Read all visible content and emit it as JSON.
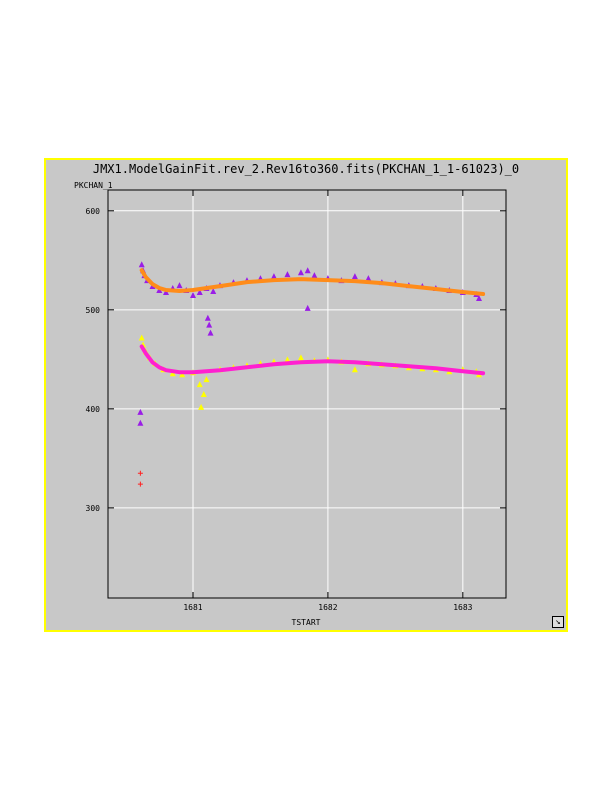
{
  "title": "JMX1.ModelGainFit.rev_2.Rev16to360.fits(PKCHAN_1_1-61023)_0",
  "ylabel": "PKCHAN_1",
  "xlabel": "TSTART",
  "chart_data": {
    "type": "scatter",
    "title": "JMX1.ModelGainFit.rev_2.Rev16to360.fits(PKCHAN_1_1-61023)_0",
    "xlabel": "TSTART",
    "ylabel": "PKCHAN_1",
    "xlim": [
      1680.37,
      1683.32
    ],
    "ylim": [
      209,
      621
    ],
    "xticks": [
      1681,
      1682,
      1683
    ],
    "yticks": [
      300,
      400,
      500,
      600
    ],
    "grid": true,
    "colors": {
      "upper_points": "#9a1ee6",
      "upper_fit": "#ff8c1a",
      "lower_points": "#ffff00",
      "lower_fit": "#ff20d0",
      "outlier_cross": "#ff2020"
    },
    "series": [
      {
        "kind": "upper-points",
        "color": "#9a1ee6",
        "x": [
          1680.62,
          1680.63,
          1680.64,
          1680.66,
          1680.7,
          1680.75,
          1680.8,
          1680.85,
          1680.9,
          1680.95,
          1681.0,
          1681.05,
          1681.1,
          1681.15,
          1681.2,
          1681.3,
          1681.4,
          1681.5,
          1681.6,
          1681.7,
          1681.8,
          1681.85,
          1681.9,
          1682.0,
          1682.1,
          1682.2,
          1682.3,
          1682.4,
          1682.5,
          1682.6,
          1682.7,
          1682.8,
          1682.9,
          1683.0,
          1683.1,
          1683.12,
          1681.11,
          1681.12,
          1681.13,
          1681.85
        ],
        "y": [
          546,
          540,
          535,
          530,
          524,
          520,
          518,
          522,
          525,
          520,
          515,
          518,
          522,
          519,
          525,
          528,
          530,
          532,
          534,
          536,
          538,
          540,
          535,
          532,
          530,
          534,
          532,
          528,
          527,
          525,
          524,
          522,
          520,
          518,
          516,
          512,
          492,
          485,
          477,
          502
        ]
      },
      {
        "kind": "upper-fit",
        "color": "#ff8c1a",
        "x": [
          1680.62,
          1680.65,
          1680.7,
          1680.75,
          1680.8,
          1680.9,
          1681.0,
          1681.2,
          1681.4,
          1681.6,
          1681.8,
          1682.0,
          1682.2,
          1682.4,
          1682.6,
          1682.8,
          1683.0,
          1683.15
        ],
        "y": [
          540,
          533,
          526,
          522,
          520,
          519,
          520,
          524,
          528,
          530,
          531,
          530,
          529,
          527,
          524,
          521,
          518,
          516
        ]
      },
      {
        "kind": "lower-points",
        "color": "#ffff00",
        "x": [
          1680.62,
          1680.63,
          1680.65,
          1680.68,
          1680.72,
          1680.78,
          1680.85,
          1680.92,
          1681.0,
          1681.05,
          1681.08,
          1681.1,
          1681.2,
          1681.3,
          1681.4,
          1681.5,
          1681.6,
          1681.7,
          1681.8,
          1681.9,
          1682.0,
          1682.1,
          1682.2,
          1682.3,
          1682.4,
          1682.5,
          1682.6,
          1682.7,
          1682.8,
          1682.9,
          1683.0,
          1683.1,
          1683.12,
          1681.06
        ],
        "y": [
          472,
          465,
          458,
          452,
          446,
          440,
          436,
          435,
          437,
          425,
          415,
          430,
          440,
          442,
          444,
          446,
          448,
          450,
          452,
          449,
          450,
          448,
          440,
          446,
          445,
          444,
          442,
          441,
          440,
          438,
          440,
          438,
          435,
          402
        ]
      },
      {
        "kind": "lower-fit",
        "color": "#ff20d0",
        "x": [
          1680.62,
          1680.65,
          1680.7,
          1680.75,
          1680.8,
          1680.9,
          1681.0,
          1681.2,
          1681.4,
          1681.6,
          1681.8,
          1682.0,
          1682.2,
          1682.4,
          1682.6,
          1682.8,
          1683.0,
          1683.15
        ],
        "y": [
          463,
          456,
          447,
          442,
          439,
          437,
          437,
          439,
          442,
          445,
          447,
          448,
          447,
          445,
          443,
          441,
          438,
          436
        ]
      },
      {
        "kind": "outlier-triangles",
        "color": "#9a1ee6",
        "x": [
          1680.61,
          1680.61
        ],
        "y": [
          397,
          386
        ]
      },
      {
        "kind": "outlier-crosses",
        "color": "#ff2020",
        "x": [
          1680.61,
          1680.61
        ],
        "y": [
          335,
          324
        ]
      }
    ]
  }
}
